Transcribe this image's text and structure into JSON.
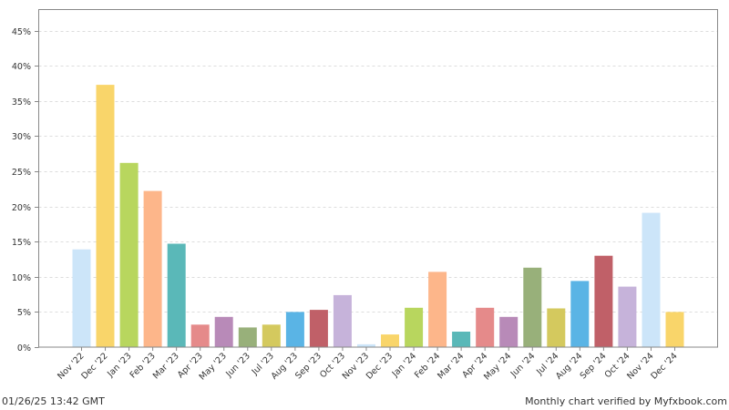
{
  "chart_data": {
    "type": "bar",
    "categories": [
      "Nov '22",
      "Dec '22",
      "Jan '23",
      "Feb '23",
      "Mar '23",
      "Apr '23",
      "May '23",
      "Jun '23",
      "Jul '23",
      "Aug '23",
      "Sep '23",
      "Oct '23",
      "Nov '23",
      "Dec '23",
      "Jan '24",
      "Feb '24",
      "Mar '24",
      "Apr '24",
      "May '24",
      "Jun '24",
      "Jul '24",
      "Aug '24",
      "Sep '24",
      "Oct '24",
      "Nov '24",
      "Dec '24"
    ],
    "values": [
      13.9,
      37.3,
      26.2,
      22.2,
      14.7,
      3.2,
      4.3,
      2.8,
      3.2,
      5.0,
      5.3,
      7.4,
      0.4,
      1.8,
      5.6,
      10.7,
      2.2,
      5.6,
      4.3,
      11.3,
      5.5,
      9.4,
      13.0,
      8.6,
      19.1,
      5.0
    ],
    "bar_colors": [
      "#cce5f9",
      "#f9d56a",
      "#b8d65e",
      "#fdb68a",
      "#5ab8b8",
      "#e58a8a",
      "#b88ab8",
      "#98b07a",
      "#d4c95e",
      "#5ab4e5",
      "#c06068",
      "#c6b3da",
      "#cce5f9",
      "#f9d56a",
      "#b8d65e",
      "#fdb68a",
      "#5ab8b8",
      "#e58a8a",
      "#b88ab8",
      "#98b07a",
      "#d4c95e",
      "#5ab4e5",
      "#c06068",
      "#c6b3da",
      "#cce5f9",
      "#f9d56a"
    ],
    "y_ticks": [
      "0%",
      "5%",
      "10%",
      "15%",
      "20%",
      "25%",
      "30%",
      "35%",
      "40%",
      "45%"
    ],
    "ylim": [
      0,
      48
    ],
    "grid": "horizontal dashed",
    "xlabel": "",
    "ylabel": ""
  },
  "footer": {
    "timestamp": "01/26/25 13:42 GMT",
    "verified": "Monthly chart verified by Myfxbook.com"
  }
}
